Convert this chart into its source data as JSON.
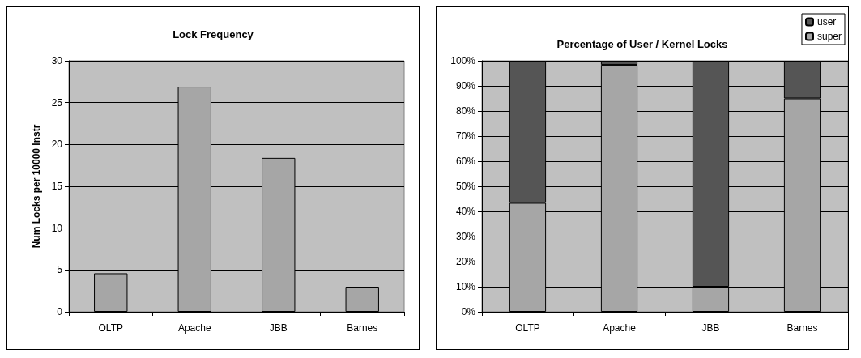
{
  "chart_data": [
    {
      "type": "bar",
      "title": "Lock Frequency",
      "ylabel": "Num Locks per 10000 Instr",
      "categories": [
        "OLTP",
        "Apache",
        "JBB",
        "Barnes"
      ],
      "values": [
        4.6,
        26.9,
        18.4,
        3.0
      ],
      "color": "#a6a6a6",
      "ylim": [
        0,
        30
      ],
      "yticks": [
        0,
        5,
        10,
        15,
        20,
        25,
        30
      ],
      "grid": "y",
      "legend": false
    },
    {
      "type": "bar",
      "title": "Percentage of User / Kernel Locks",
      "categories": [
        "OLTP",
        "Apache",
        "JBB",
        "Barnes"
      ],
      "stacked": true,
      "series": [
        {
          "name": "super",
          "color": "#a6a6a6",
          "values": [
            43.4,
            98.4,
            10,
            85
          ]
        },
        {
          "name": "user",
          "color": "#555555",
          "values": [
            56.6,
            1.6,
            90,
            15
          ]
        }
      ],
      "ylim": [
        0,
        100
      ],
      "yticks": [
        {
          "value": 0,
          "label": "0%"
        },
        {
          "value": 10,
          "label": "10%"
        },
        {
          "value": 20,
          "label": "20%"
        },
        {
          "value": 30,
          "label": "30%"
        },
        {
          "value": 40,
          "label": "40%"
        },
        {
          "value": 50,
          "label": "50%"
        },
        {
          "value": 60,
          "label": "60%"
        },
        {
          "value": 70,
          "label": "70%"
        },
        {
          "value": 80,
          "label": "80%"
        },
        {
          "value": 90,
          "label": "90%"
        },
        {
          "value": 100,
          "label": "100%"
        }
      ],
      "grid": "y",
      "legend": "top right"
    }
  ]
}
